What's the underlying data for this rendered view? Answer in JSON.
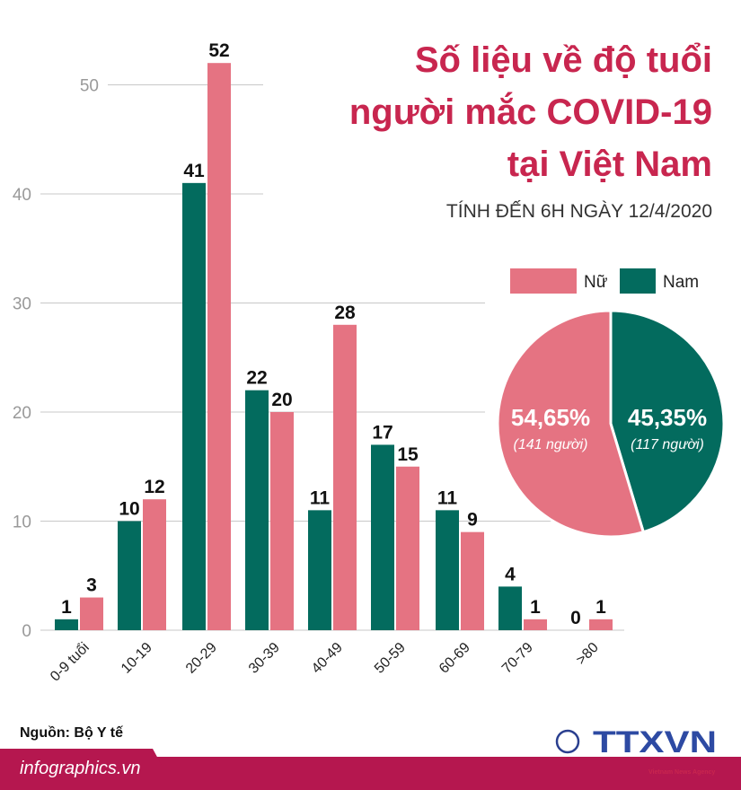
{
  "title_lines": [
    "Số liệu về độ tuổi",
    "người mắc COVID-19",
    "tại Việt Nam"
  ],
  "subtitle": "TÍNH ĐẾN 6H NGÀY 12/4/2020",
  "source": "Nguồn: Bộ Y tế",
  "site": "infographics.vn",
  "logo": {
    "text": "TTXVN",
    "tagline": "Vietnam News Agency",
    "copyright": "©"
  },
  "colors": {
    "nam": "#036b5e",
    "nu": "#e57382",
    "title": "#c8264f",
    "footer": "#b5174f"
  },
  "chart_data": [
    {
      "type": "bar",
      "categories": [
        "0-9 tuổi",
        "10-19",
        "20-29",
        "30-39",
        "40-49",
        "50-59",
        "60-69",
        "70-79",
        ">80"
      ],
      "series": [
        {
          "name": "Nam",
          "values": [
            1,
            10,
            41,
            22,
            11,
            17,
            11,
            4,
            0
          ]
        },
        {
          "name": "Nữ",
          "values": [
            3,
            12,
            52,
            20,
            28,
            15,
            9,
            1,
            1
          ]
        }
      ],
      "yticks": [
        0,
        10,
        20,
        30,
        40,
        50
      ],
      "ylim": [
        0,
        55
      ],
      "grid": true
    },
    {
      "type": "pie",
      "legend": [
        "Nữ",
        "Nam"
      ],
      "legend_placement": "top",
      "slices": [
        {
          "name": "Nữ",
          "value": 54.65,
          "label": "54,65%",
          "sublabel": "(141 người)"
        },
        {
          "name": "Nam",
          "value": 45.35,
          "label": "45,35%",
          "sublabel": "(117 người)"
        }
      ]
    }
  ]
}
